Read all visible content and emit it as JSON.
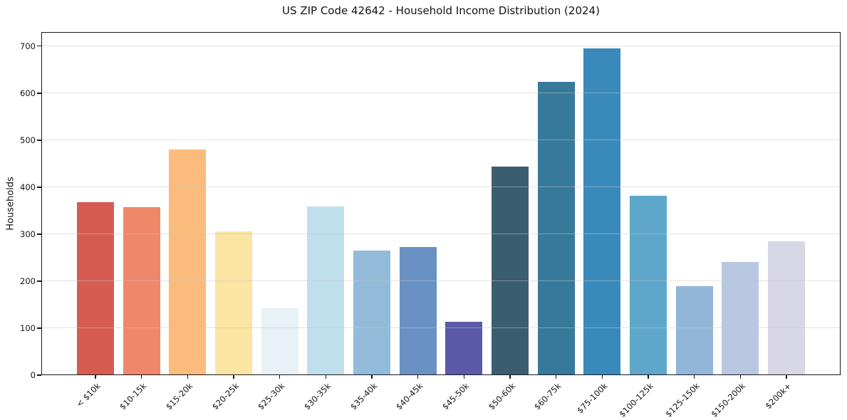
{
  "chart_data": {
    "type": "bar",
    "title": "US ZIP Code 42642 - Household Income Distribution (2024)",
    "xlabel": "",
    "ylabel": "Households",
    "categories": [
      "< $10k",
      "$10-15k",
      "$15-20k",
      "$20-25k",
      "$25-30k",
      "$30-35k",
      "$35-40k",
      "$40-45k",
      "$45-50k",
      "$50-60k",
      "$60-75k",
      "$75-100k",
      "$100-125k",
      "$125-150k",
      "$150-200k",
      "$200k+"
    ],
    "values": [
      368,
      358,
      480,
      306,
      143,
      359,
      265,
      273,
      113,
      444,
      624,
      695,
      382,
      189,
      241,
      285
    ],
    "bar_colors": [
      "#d65c52",
      "#f1876a",
      "#fbbb7c",
      "#fae5a3",
      "#e7f1f6",
      "#c0dfec",
      "#92bbda",
      "#6a91c3",
      "#5a5aa8",
      "#3a5e70",
      "#37799b",
      "#398aba",
      "#5ea6ca",
      "#92b6d8",
      "#b9c8e1",
      "#d7d7e6"
    ],
    "yticks": [
      0,
      100,
      200,
      300,
      400,
      500,
      600,
      700
    ],
    "ylim": [
      0,
      730
    ],
    "grid": "horizontal",
    "legend_position": "none"
  },
  "colors": {
    "background": "#ffffff",
    "spine": "#18181c",
    "grid": "#e6e6ea",
    "text": "#141414"
  }
}
